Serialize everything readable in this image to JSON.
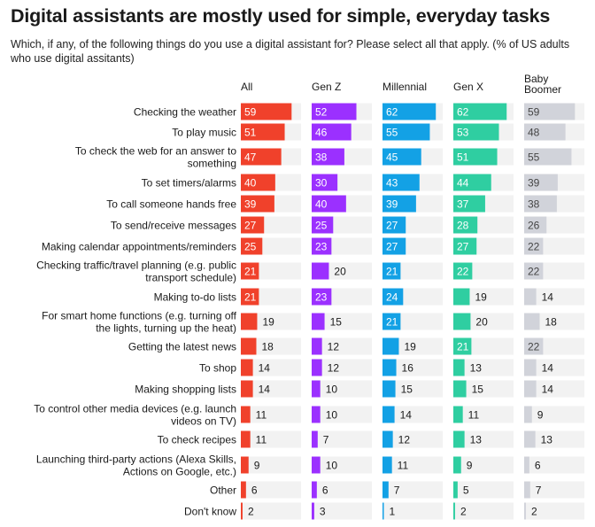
{
  "chart_data": {
    "type": "bar",
    "title": "Digital assistants are mostly used for simple, everyday tasks",
    "subtitle": "Which, if any, of the following things do you use a digital assistant for? Please select all that apply. (% of US adults who use digital assitants)",
    "categories": [
      [
        "Checking the weather"
      ],
      [
        "To play music"
      ],
      [
        "To check the web for an answer to",
        "something"
      ],
      [
        "To set timers/alarms"
      ],
      [
        "To call someone hands free"
      ],
      [
        "To send/receive messages"
      ],
      [
        "Making calendar appointments/reminders"
      ],
      [
        "Checking traffic/travel planning (e.g. public",
        "transport schedule)"
      ],
      [
        "Making to-do lists"
      ],
      [
        "For smart home functions (e.g. turning off",
        "the lights, turning up the heat)"
      ],
      [
        "Getting the latest news"
      ],
      [
        "To shop"
      ],
      [
        "Making shopping lists"
      ],
      [
        "To control other media devices (e.g. launch",
        "videos on TV)"
      ],
      [
        "To check recipes"
      ],
      [
        "Launching third-party actions (Alexa Skills,",
        "Actions on Google, etc.)"
      ],
      [
        "Other"
      ],
      [
        "Don't know"
      ]
    ],
    "series": [
      {
        "name": [
          "All"
        ],
        "color": "#f0412b",
        "values": [
          59,
          51,
          47,
          40,
          39,
          27,
          25,
          21,
          21,
          19,
          18,
          14,
          14,
          11,
          11,
          9,
          6,
          2
        ]
      },
      {
        "name": [
          "Gen Z"
        ],
        "color": "#9b30ff",
        "values": [
          52,
          46,
          38,
          30,
          40,
          25,
          23,
          20,
          23,
          15,
          12,
          12,
          10,
          10,
          7,
          10,
          6,
          3
        ]
      },
      {
        "name": [
          "Millennial"
        ],
        "color": "#13a1e5",
        "values": [
          62,
          55,
          45,
          43,
          39,
          27,
          27,
          21,
          24,
          21,
          19,
          16,
          15,
          14,
          12,
          11,
          7,
          1
        ]
      },
      {
        "name": [
          "Gen X"
        ],
        "color": "#2fcea1",
        "values": [
          62,
          53,
          51,
          44,
          37,
          28,
          27,
          22,
          19,
          20,
          21,
          13,
          15,
          11,
          13,
          9,
          5,
          2
        ]
      },
      {
        "name": [
          "Baby",
          "Boomer"
        ],
        "color": "#d1d3da",
        "values": [
          59,
          48,
          55,
          39,
          38,
          26,
          22,
          22,
          14,
          18,
          22,
          14,
          14,
          9,
          13,
          6,
          7,
          2
        ]
      }
    ],
    "xlim": [
      0,
      70
    ],
    "value_label_inside_threshold": 21,
    "track_color": "#f2f2f2",
    "inside_label_color": "#ffffff",
    "boomer_inside_label_color": "#444444",
    "outside_label_color": "#1a1a1a"
  }
}
